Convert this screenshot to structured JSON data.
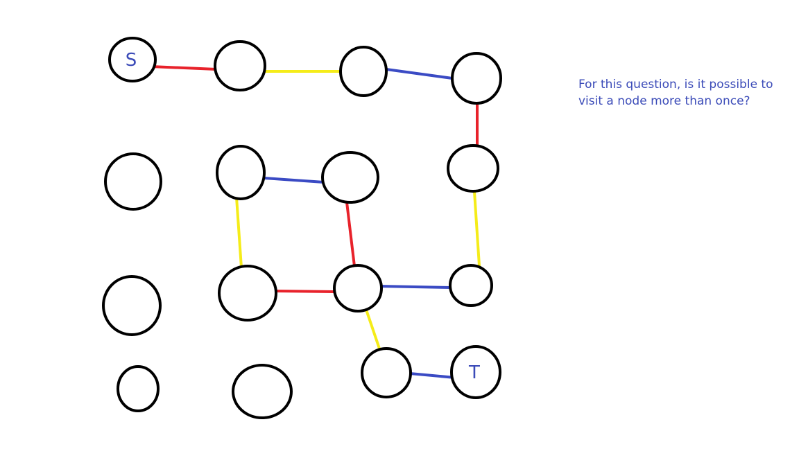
{
  "question": {
    "line1": "For this question, is it possible to",
    "line2": "visit a node more than once?"
  },
  "colors": {
    "red": "#e8222b",
    "yellow": "#f5ec19",
    "blue": "#3b4bc4",
    "node_stroke": "#000000",
    "label": "#3b4bb8"
  },
  "nodes": [
    {
      "id": "S",
      "label": "S"
    },
    {
      "id": "n2",
      "label": ""
    },
    {
      "id": "n3",
      "label": ""
    },
    {
      "id": "n4",
      "label": ""
    },
    {
      "id": "n5",
      "label": ""
    },
    {
      "id": "n6",
      "label": ""
    },
    {
      "id": "n7",
      "label": ""
    },
    {
      "id": "n8",
      "label": ""
    },
    {
      "id": "n9",
      "label": ""
    },
    {
      "id": "n10",
      "label": ""
    },
    {
      "id": "n11",
      "label": ""
    },
    {
      "id": "n12",
      "label": ""
    },
    {
      "id": "n13",
      "label": ""
    },
    {
      "id": "n14",
      "label": ""
    },
    {
      "id": "n15",
      "label": ""
    },
    {
      "id": "n16",
      "label": ""
    },
    {
      "id": "T",
      "label": "T"
    }
  ],
  "edges": [
    {
      "from": "S",
      "to": "n2",
      "color": "red"
    },
    {
      "from": "n2",
      "to": "n3",
      "color": "yellow"
    },
    {
      "from": "n3",
      "to": "n4",
      "color": "blue"
    },
    {
      "from": "n4",
      "to": "n7",
      "color": "red"
    },
    {
      "from": "n5",
      "to": "n6",
      "color": "blue"
    },
    {
      "from": "n5",
      "to": "n9",
      "color": "yellow"
    },
    {
      "from": "n6",
      "to": "n10",
      "color": "red"
    },
    {
      "from": "n7",
      "to": "n11",
      "color": "yellow"
    },
    {
      "from": "n9",
      "to": "n10",
      "color": "red"
    },
    {
      "from": "n10",
      "to": "n11",
      "color": "blue"
    },
    {
      "from": "n10",
      "to": "n14",
      "color": "yellow"
    },
    {
      "from": "n14",
      "to": "T",
      "color": "blue"
    }
  ]
}
